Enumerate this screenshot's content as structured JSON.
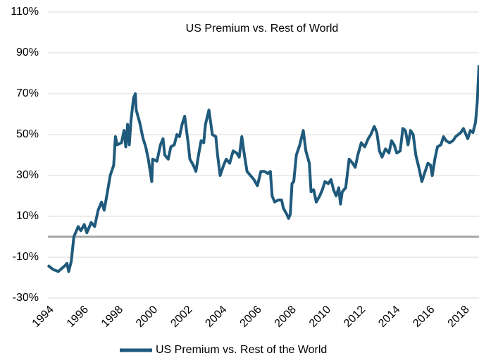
{
  "chart_data": {
    "type": "line",
    "title": "US Premium vs. Rest of World",
    "x": [
      1994.0,
      1994.3,
      1994.6,
      1995.0,
      1995.1,
      1995.2,
      1995.35,
      1995.5,
      1995.75,
      1995.9,
      1996.1,
      1996.25,
      1996.5,
      1996.7,
      1996.9,
      1997.1,
      1997.25,
      1997.4,
      1997.6,
      1997.8,
      1997.9,
      1998.0,
      1998.25,
      1998.4,
      1998.5,
      1998.6,
      1998.7,
      1998.8,
      1998.95,
      1999.05,
      1999.1,
      1999.3,
      1999.5,
      1999.65,
      1999.8,
      2000.0,
      2000.05,
      2000.3,
      2000.5,
      2000.65,
      2000.75,
      2000.95,
      2001.1,
      2001.3,
      2001.45,
      2001.6,
      2001.75,
      2001.9,
      2002.1,
      2002.2,
      2002.4,
      2002.55,
      2002.7,
      2002.85,
      2003.0,
      2003.1,
      2003.3,
      2003.5,
      2003.7,
      2003.8,
      2003.95,
      2004.15,
      2004.3,
      2004.5,
      2004.7,
      2004.9,
      2005.05,
      2005.2,
      2005.35,
      2005.5,
      2005.7,
      2005.9,
      2006.1,
      2006.3,
      2006.5,
      2006.7,
      2006.85,
      2006.95,
      2007.1,
      2007.3,
      2007.5,
      2007.6,
      2007.8,
      2007.9,
      2008.0,
      2008.1,
      2008.2,
      2008.35,
      2008.55,
      2008.75,
      2008.9,
      2009.1,
      2009.2,
      2009.35,
      2009.5,
      2009.7,
      2009.85,
      2010.0,
      2010.2,
      2010.35,
      2010.5,
      2010.65,
      2010.8,
      2010.9,
      2011.0,
      2011.2,
      2011.4,
      2011.6,
      2011.75,
      2011.9,
      2012.1,
      2012.3,
      2012.5,
      2012.65,
      2012.85,
      2013.0,
      2013.15,
      2013.3,
      2013.5,
      2013.7,
      2013.85,
      2014.0,
      2014.15,
      2014.35,
      2014.5,
      2014.65,
      2014.8,
      2014.95,
      2015.1,
      2015.25,
      2015.45,
      2015.6,
      2015.75,
      2015.95,
      2016.1,
      2016.2,
      2016.35,
      2016.5,
      2016.7,
      2016.85,
      2017.0,
      2017.2,
      2017.4,
      2017.55,
      2017.7,
      2017.85,
      2018.0,
      2018.15,
      2018.25,
      2018.4,
      2018.55,
      2018.7,
      2018.8,
      2018.9
    ],
    "series": [
      {
        "name": "US Premium vs. Rest of the World",
        "color": "#1f5a7c",
        "values": [
          -14,
          -16,
          -17,
          -14,
          -13,
          -17,
          -12,
          0,
          5,
          3,
          6,
          2,
          7,
          5,
          13,
          17,
          13,
          20,
          30,
          35,
          49,
          45,
          46,
          52,
          44,
          55,
          45,
          57,
          68,
          70,
          62,
          56,
          48,
          44,
          38,
          27,
          38,
          37,
          45,
          48,
          40,
          38,
          44,
          45,
          50,
          49,
          55,
          59,
          46,
          38,
          35,
          32,
          40,
          47,
          46,
          55,
          62,
          50,
          49,
          40,
          30,
          35,
          38,
          36,
          42,
          41,
          39,
          49,
          40,
          32,
          30,
          28,
          25,
          32,
          32,
          31,
          32,
          20,
          17,
          18,
          18,
          14,
          11,
          9,
          11,
          26,
          27,
          40,
          45,
          52,
          42,
          36,
          22,
          23,
          17,
          20,
          23,
          27,
          26,
          28,
          23,
          20,
          24,
          16,
          22,
          24,
          38,
          36,
          34,
          40,
          46,
          44,
          48,
          50,
          54,
          51,
          42,
          39,
          43,
          41,
          47,
          45,
          41,
          42,
          53,
          52,
          45,
          52,
          50,
          40,
          33,
          27,
          31,
          36,
          35,
          30,
          38,
          44,
          45,
          49,
          47,
          46,
          47,
          49,
          50,
          51,
          53,
          50,
          48,
          52,
          51,
          56,
          66,
          84
        ]
      }
    ],
    "xlim": [
      1994,
      2018.9
    ],
    "xticks": [
      1994,
      1996,
      1998,
      2000,
      2002,
      2004,
      2006,
      2008,
      2010,
      2012,
      2014,
      2016,
      2018
    ],
    "ylim": [
      -30,
      110
    ],
    "yticks": [
      {
        "value": -30,
        "label": "-30%"
      },
      {
        "value": -10,
        "label": "-10%"
      },
      {
        "value": 10,
        "label": "10%"
      },
      {
        "value": 30,
        "label": "30%"
      },
      {
        "value": 50,
        "label": "50%"
      },
      {
        "value": 70,
        "label": "70%"
      },
      {
        "value": 90,
        "label": "90%"
      },
      {
        "value": 110,
        "label": "110%"
      }
    ],
    "grid": true,
    "legend": "bottom"
  }
}
